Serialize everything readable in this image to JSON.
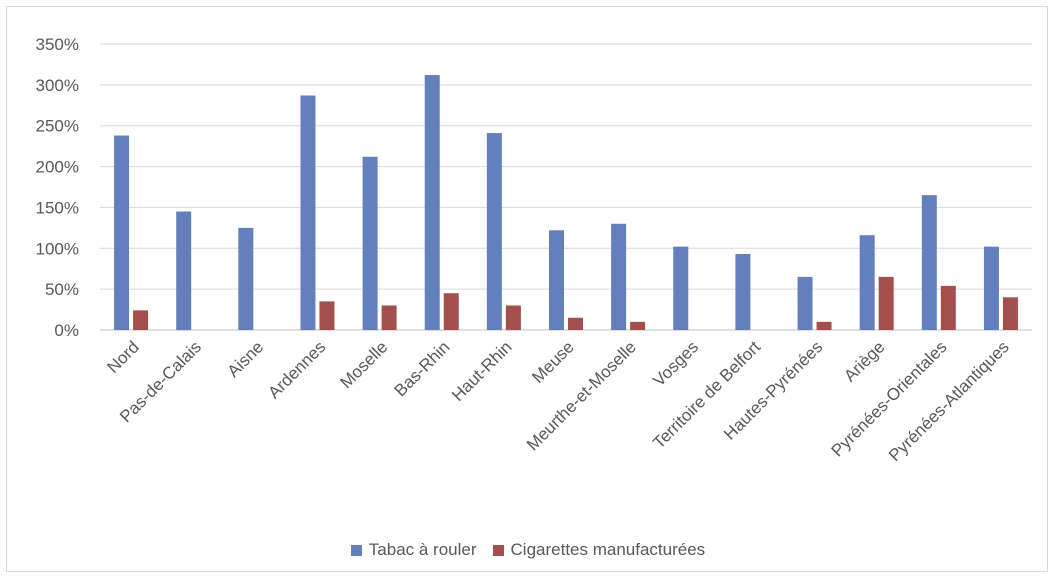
{
  "chart_data": {
    "type": "bar",
    "categories": [
      "Nord",
      "Pas-de-Calais",
      "Aisne",
      "Ardennes",
      "Moselle",
      "Bas-Rhin",
      "Haut-Rhin",
      "Meuse",
      "Meurthe-et-Moselle",
      "Vosges",
      "Territoire de Belfort",
      "Hautes-Pyrénées",
      "Ariège",
      "Pyrénées-Orientales",
      "Pyrénées-Atlantiques"
    ],
    "series": [
      {
        "name": "Tabac à rouler",
        "color": "#6480bc",
        "values": [
          238,
          145,
          125,
          287,
          212,
          312,
          241,
          122,
          130,
          102,
          93,
          65,
          116,
          165,
          102
        ]
      },
      {
        "name": "Cigarettes manufacturées",
        "color": "#a54e4e",
        "values": [
          24,
          0,
          0,
          35,
          30,
          45,
          30,
          15,
          10,
          0,
          0,
          10,
          65,
          54,
          40
        ]
      }
    ],
    "yticks": [
      "0%",
      "50%",
      "100%",
      "150%",
      "200%",
      "250%",
      "300%",
      "350%"
    ],
    "ylim": [
      0,
      350
    ],
    "grid": true,
    "legend_position": "bottom"
  }
}
